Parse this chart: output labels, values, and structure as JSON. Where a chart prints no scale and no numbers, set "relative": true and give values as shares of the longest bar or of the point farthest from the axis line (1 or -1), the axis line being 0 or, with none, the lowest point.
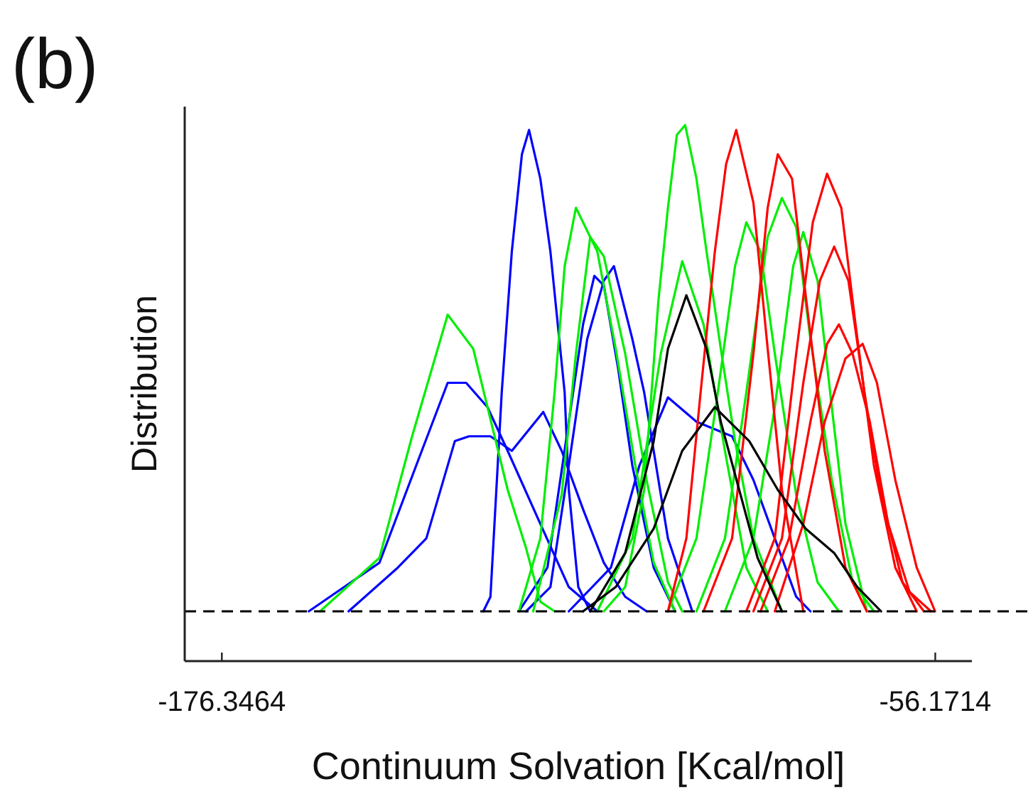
{
  "chart_data": {
    "type": "line",
    "title": "(b)",
    "xlabel": "Continuum Solvation [Kcal/mol]",
    "ylabel": "Distribution",
    "relative": true,
    "xlim": [
      -182.6,
      -50.0
    ],
    "xticks": [
      -176.3464,
      -56.1714
    ],
    "ref_lines": [
      {
        "axis": "y",
        "value": 0,
        "color": "#000000",
        "line_style": "dashed"
      }
    ],
    "series": [
      {
        "color": "#0000ff",
        "x": [
          -132.3,
          -131.1,
          -129.2,
          -127.5,
          -125.8,
          -124.6,
          -122.7,
          -121.0,
          -118.6,
          -117.9,
          -116.3,
          -114.3
        ],
        "values": [
          0,
          0.03,
          0.45,
          0.74,
          0.94,
          0.99,
          0.89,
          0.74,
          0.45,
          0.25,
          0.05,
          0
        ]
      },
      {
        "color": "#0000ff",
        "x": [
          -161.7,
          -149.8,
          -143.6,
          -138.3,
          -135.2,
          -131.6,
          -128.2,
          -122.7,
          -117.9,
          -113.1
        ],
        "values": [
          0,
          0.1,
          0.3,
          0.47,
          0.47,
          0.42,
          0.33,
          0.18,
          0.05,
          0
        ]
      },
      {
        "color": "#0000ff",
        "x": [
          -155.0,
          -146.7,
          -141.9,
          -137.1,
          -134.7,
          -131.1,
          -127.5,
          -122.2,
          -119.1,
          -115.5,
          -112.0,
          -108.4,
          -104.8
        ],
        "values": [
          0,
          0.09,
          0.15,
          0.35,
          0.36,
          0.36,
          0.33,
          0.41,
          0.33,
          0.21,
          0.1,
          0.03,
          0
        ]
      },
      {
        "color": "#0000ff",
        "x": [
          -125.1,
          -121.0,
          -117.9,
          -114.8,
          -112.0,
          -110.3,
          -107.2,
          -105.2,
          -101.2,
          -97.1
        ],
        "values": [
          0,
          0.05,
          0.3,
          0.56,
          0.68,
          0.71,
          0.56,
          0.45,
          0.15,
          0
        ]
      },
      {
        "color": "#0000ff",
        "x": [
          -126.3,
          -121.5,
          -117.9,
          -115.5,
          -113.6,
          -112.0,
          -109.6,
          -107.2,
          -103.6,
          -100.0
        ],
        "values": [
          0,
          0.09,
          0.39,
          0.59,
          0.69,
          0.67,
          0.5,
          0.3,
          0.09,
          0
        ]
      },
      {
        "color": "#0000ff",
        "x": [
          -117.9,
          -110.8,
          -106.0,
          -101.2,
          -96.4,
          -90.4,
          -86.8,
          -83.2,
          -79.6,
          -77.2
        ],
        "values": [
          0,
          0.09,
          0.3,
          0.44,
          0.39,
          0.36,
          0.27,
          0.15,
          0.03,
          0
        ]
      },
      {
        "color": "#00ee00",
        "x": [
          -159.8,
          -149.8,
          -144.3,
          -138.3,
          -134.0,
          -131.6,
          -128.2,
          -125.1,
          -122.7,
          -120.3
        ],
        "values": [
          0,
          0.11,
          0.36,
          0.61,
          0.54,
          0.42,
          0.25,
          0.13,
          0.02,
          0
        ]
      },
      {
        "color": "#00ee00",
        "x": [
          -126.3,
          -122.7,
          -120.3,
          -118.6,
          -116.7,
          -113.1,
          -110.0,
          -106.7,
          -103.6,
          -100.0
        ],
        "values": [
          0,
          0.15,
          0.45,
          0.71,
          0.83,
          0.74,
          0.54,
          0.3,
          0.1,
          0
        ]
      },
      {
        "color": "#00ee00",
        "x": [
          -123.9,
          -119.1,
          -116.7,
          -114.3,
          -112.0,
          -108.4,
          -104.8,
          -101.2,
          -98.8
        ],
        "values": [
          0,
          0.24,
          0.53,
          0.77,
          0.73,
          0.53,
          0.27,
          0.06,
          0
        ]
      },
      {
        "color": "#00ee00",
        "x": [
          -112.0,
          -108.4,
          -105.2,
          -102.8,
          -101.2,
          -99.7,
          -98.3,
          -96.4,
          -94.7,
          -92.3,
          -89.9,
          -86.8,
          -82.0
        ],
        "values": [
          0,
          0.05,
          0.25,
          0.64,
          0.83,
          0.98,
          1,
          0.89,
          0.74,
          0.54,
          0.35,
          0.15,
          0
        ]
      },
      {
        "color": "#00ee00",
        "x": [
          -113.1,
          -107.2,
          -102.4,
          -98.8,
          -95.2,
          -91.6,
          -88.0,
          -84.4
        ],
        "values": [
          0,
          0.15,
          0.53,
          0.72,
          0.59,
          0.33,
          0.09,
          0
        ]
      },
      {
        "color": "#00ee00",
        "x": [
          -101.2,
          -96.4,
          -92.8,
          -89.9,
          -88.0,
          -85.6,
          -83.2,
          -79.6,
          -76.0,
          -72.4
        ],
        "values": [
          0,
          0.15,
          0.45,
          0.71,
          0.8,
          0.74,
          0.53,
          0.24,
          0.06,
          0
        ]
      },
      {
        "color": "#00ee00",
        "x": [
          -96.4,
          -91.6,
          -88.0,
          -84.4,
          -82.0,
          -79.6,
          -77.2,
          -73.6,
          -70.1,
          -66.5
        ],
        "values": [
          0,
          0.15,
          0.45,
          0.77,
          0.85,
          0.79,
          0.56,
          0.27,
          0.06,
          0
        ]
      },
      {
        "color": "#00ee00",
        "x": [
          -91.6,
          -86.8,
          -83.2,
          -80.1,
          -78.4,
          -76.0,
          -73.6,
          -71.3,
          -67.7
        ],
        "values": [
          0,
          0.15,
          0.42,
          0.71,
          0.78,
          0.68,
          0.42,
          0.18,
          0
        ]
      },
      {
        "color": "#ff0000",
        "x": [
          -101.2,
          -98.1,
          -95.7,
          -93.3,
          -91.4,
          -89.7,
          -86.8,
          -84.4,
          -82.0,
          -78.4
        ],
        "values": [
          0,
          0.15,
          0.45,
          0.74,
          0.92,
          0.99,
          0.84,
          0.54,
          0.25,
          0
        ]
      },
      {
        "color": "#ff0000",
        "x": [
          -95.2,
          -90.4,
          -86.8,
          -84.4,
          -82.7,
          -80.3,
          -78.0,
          -74.8,
          -71.3,
          -67.7
        ],
        "values": [
          0,
          0.15,
          0.53,
          0.83,
          0.94,
          0.89,
          0.65,
          0.33,
          0.09,
          0
        ]
      },
      {
        "color": "#ff0000",
        "x": [
          -88.0,
          -83.2,
          -79.6,
          -76.8,
          -74.4,
          -72.0,
          -69.6,
          -66.5,
          -62.9,
          -59.3
        ],
        "values": [
          0,
          0.15,
          0.53,
          0.8,
          0.9,
          0.83,
          0.59,
          0.3,
          0.09,
          0
        ]
      },
      {
        "color": "#ff0000",
        "x": [
          -86.8,
          -82.0,
          -78.4,
          -75.6,
          -73.2,
          -70.8,
          -68.1,
          -65.3,
          -61.7,
          -58.1
        ],
        "values": [
          0,
          0.15,
          0.47,
          0.68,
          0.75,
          0.68,
          0.45,
          0.24,
          0.06,
          0
        ]
      },
      {
        "color": "#ff0000",
        "x": [
          -85.6,
          -80.8,
          -77.2,
          -74.4,
          -72.4,
          -70.1,
          -67.2,
          -64.1,
          -60.5,
          -56.9
        ],
        "values": [
          0,
          0.15,
          0.39,
          0.55,
          0.59,
          0.53,
          0.39,
          0.18,
          0.04,
          0
        ]
      },
      {
        "color": "#ff0000",
        "x": [
          -83.2,
          -78.4,
          -74.8,
          -71.3,
          -68.4,
          -66.0,
          -62.9,
          -59.3,
          -56.2
        ],
        "values": [
          0,
          0.18,
          0.39,
          0.52,
          0.55,
          0.47,
          0.27,
          0.09,
          0
        ]
      },
      {
        "color": "#000000",
        "x": [
          -114.3,
          -108.4,
          -103.6,
          -101.2,
          -98.1,
          -94.7,
          -92.3,
          -89.2,
          -86.1,
          -82.0
        ],
        "values": [
          0,
          0.12,
          0.35,
          0.54,
          0.65,
          0.54,
          0.39,
          0.25,
          0.11,
          0
        ]
      },
      {
        "color": "#000000",
        "x": [
          -115.5,
          -110.0,
          -103.6,
          -98.8,
          -93.3,
          -87.5,
          -82.7,
          -78.0,
          -73.2,
          -69.3,
          -65.3
        ],
        "values": [
          0,
          0.05,
          0.17,
          0.33,
          0.42,
          0.35,
          0.25,
          0.17,
          0.12,
          0.05,
          0
        ]
      }
    ]
  }
}
